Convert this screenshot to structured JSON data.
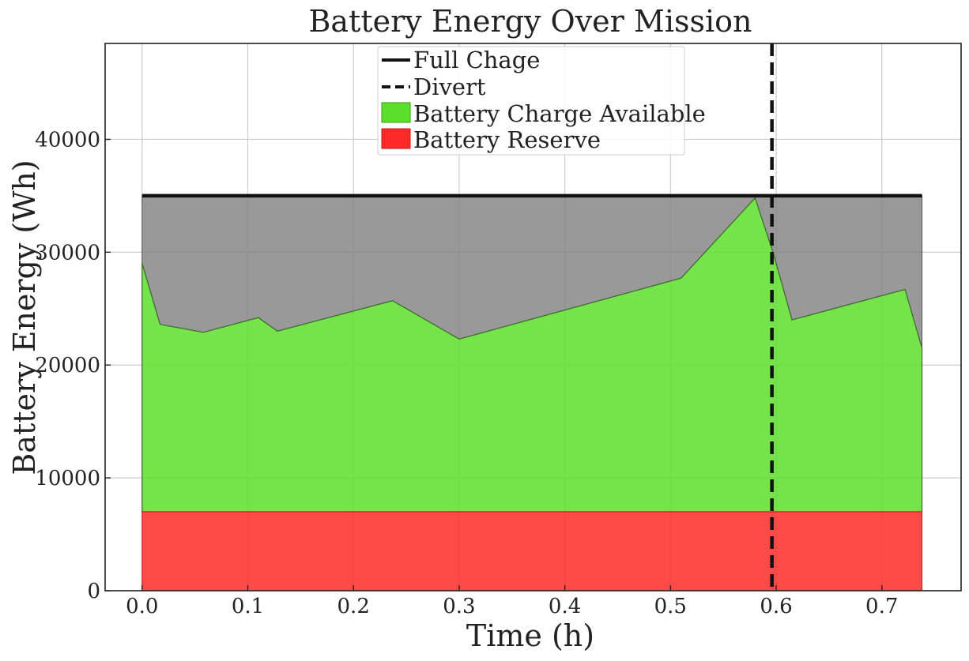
{
  "chart_data": {
    "type": "area",
    "title": "Battery Energy Over Mission",
    "xlabel": "Time (h)",
    "ylabel": "Battery Energy (Wh)",
    "xlim": [
      -0.035,
      0.775
    ],
    "ylim": [
      0,
      48500
    ],
    "xticks": [
      0.0,
      0.1,
      0.2,
      0.3,
      0.4,
      0.5,
      0.6,
      0.7
    ],
    "xtick_labels": [
      "0.0",
      "0.1",
      "0.2",
      "0.3",
      "0.4",
      "0.5",
      "0.6",
      "0.7"
    ],
    "yticks": [
      0,
      10000,
      20000,
      30000,
      40000
    ],
    "ytick_labels": [
      "0",
      "10000",
      "20000",
      "30000",
      "40000"
    ],
    "grid": true,
    "legend_position": "top-center",
    "full_charge": {
      "label": "Full Chage",
      "value": 35000,
      "x_range": [
        0.0,
        0.738
      ],
      "color": "#111111"
    },
    "divert": {
      "label": "Divert",
      "x": 0.596,
      "color": "#111111"
    },
    "reserve": {
      "label": "Battery Reserve",
      "value": 7000,
      "color": "#ff2a2a"
    },
    "available": {
      "label": "Battery Charge Available",
      "color": "#5cdf2a",
      "x": [
        0.0,
        0.017,
        0.058,
        0.11,
        0.128,
        0.237,
        0.3,
        0.51,
        0.58,
        0.597,
        0.615,
        0.722,
        0.738
      ],
      "y": [
        29000,
        23600,
        22900,
        24200,
        23000,
        25700,
        22300,
        27700,
        34800,
        30000,
        24000,
        26700,
        21500
      ]
    },
    "used_color": "#808080"
  }
}
